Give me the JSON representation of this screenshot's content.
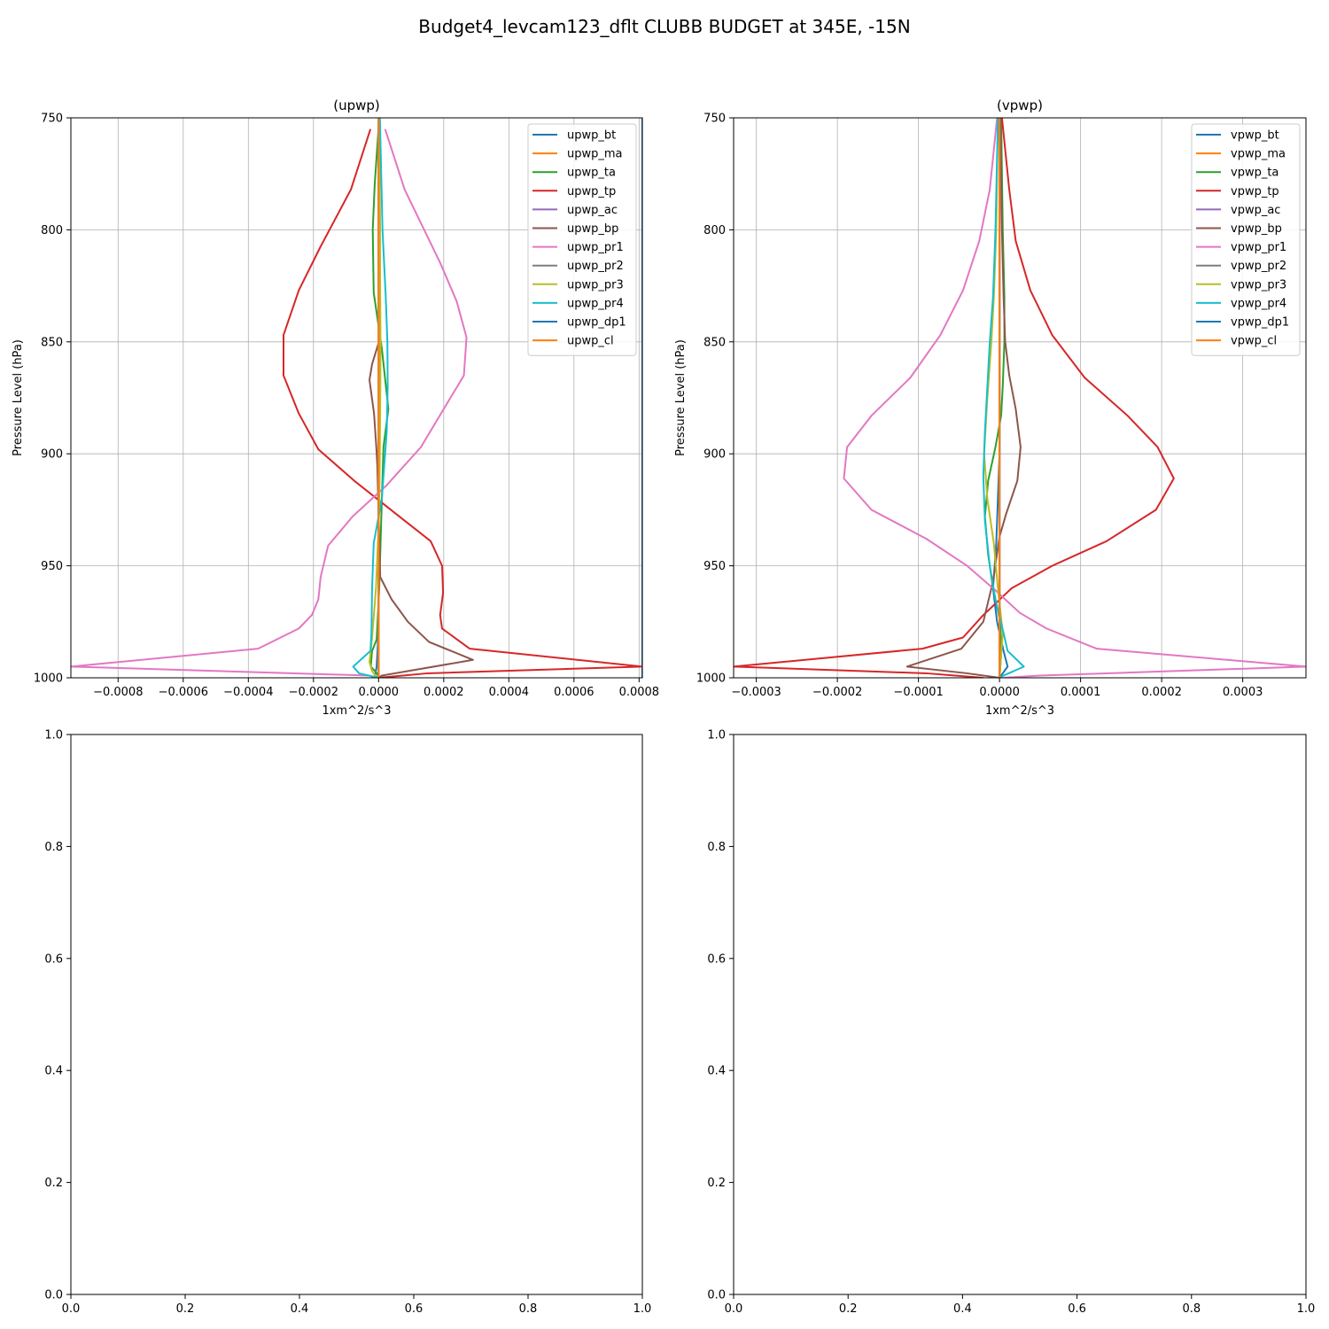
{
  "figure": {
    "suptitle": "Budget4_levcam123_dflt CLUBB BUDGET at 345E, -15N"
  },
  "chart_data": [
    {
      "type": "line",
      "title": "(upwp)",
      "xlabel": "1xm^2/s^3",
      "ylabel": "Pressure Level (hPa)",
      "xlim": [
        -0.000945,
        0.00081
      ],
      "ylim": [
        1000,
        750
      ],
      "y_inverted": true,
      "grid": true,
      "legend_position": "top-right",
      "xticks": [
        {
          "value": -0.0008,
          "label": "−0.0008"
        },
        {
          "value": -0.0006,
          "label": "−0.0006"
        },
        {
          "value": -0.0004,
          "label": "−0.0004"
        },
        {
          "value": -0.0002,
          "label": "−0.0002"
        },
        {
          "value": 0.0,
          "label": "0.0000"
        },
        {
          "value": 0.0002,
          "label": "0.0002"
        },
        {
          "value": 0.0004,
          "label": "0.0004"
        },
        {
          "value": 0.0006,
          "label": "0.0006"
        },
        {
          "value": 0.0008,
          "label": "0.0008"
        }
      ],
      "yticks": [
        {
          "value": 750,
          "label": "750"
        },
        {
          "value": 800,
          "label": "800"
        },
        {
          "value": 850,
          "label": "850"
        },
        {
          "value": 900,
          "label": "900"
        },
        {
          "value": 950,
          "label": "950"
        },
        {
          "value": 1000,
          "label": "1000"
        }
      ],
      "series": [
        {
          "name": "upwp_bt",
          "color": "#1f77b4",
          "x": [
            0,
            1e-06,
            2e-06,
            2e-06,
            1e-06,
            0,
            0,
            0,
            0,
            -3e-06,
            -6e-06,
            -1.2e-05,
            0
          ],
          "y": [
            750,
            800,
            850,
            880,
            900,
            920,
            940,
            960,
            975,
            987,
            995,
            1000,
            1000
          ]
        },
        {
          "name": "upwp_ma",
          "color": "#ff7f0e",
          "x": [
            0,
            0,
            0,
            0,
            0,
            0,
            0,
            0,
            0,
            0,
            0,
            0
          ],
          "y": [
            750,
            780,
            800,
            830,
            850,
            880,
            900,
            930,
            950,
            980,
            995,
            1000
          ]
        },
        {
          "name": "upwp_ta",
          "color": "#2ca02c",
          "x": [
            2e-06,
            -1.2e-05,
            -1.8e-05,
            -1.5e-05,
            1e-05,
            3e-05,
            1.5e-05,
            8e-06,
            2e-06,
            -6e-06,
            -2e-05,
            -2.4e-05,
            -5e-06,
            0
          ],
          "y": [
            750,
            780,
            800,
            828,
            853,
            880,
            897,
            930,
            960,
            983,
            988,
            995,
            998,
            1000
          ]
        },
        {
          "name": "upwp_tp",
          "color": "#d62728",
          "x": [
            -2.5e-05,
            -8.5e-05,
            -0.00018,
            -0.000245,
            -0.000292,
            -0.000292,
            -0.000245,
            -0.000185,
            -7.5e-05,
            5.5e-05,
            0.00016,
            0.000195,
            0.000198,
            0.000189,
            0.000195,
            0.00028,
            0.00081,
            0.00015,
            0
          ],
          "y": [
            755,
            782,
            808,
            827,
            847,
            865,
            882,
            898,
            912,
            927,
            939,
            950,
            962,
            972,
            978,
            987,
            995,
            998,
            1000
          ]
        },
        {
          "name": "upwp_ac",
          "color": "#9467bd",
          "x": [
            0,
            0,
            0,
            0,
            0,
            0,
            0,
            0,
            0,
            0
          ],
          "y": [
            750,
            800,
            830,
            850,
            900,
            950,
            975,
            990,
            995,
            1000
          ]
        },
        {
          "name": "upwp_bp",
          "color": "#8c564b",
          "x": [
            2e-06,
            4e-06,
            3e-06,
            1e-06,
            -2e-05,
            -2.8e-05,
            -1.4e-05,
            -7e-06,
            -4e-06,
            5e-06,
            4e-05,
            9e-05,
            0.000155,
            0.00029,
            1e-05,
            0
          ],
          "y": [
            750,
            800,
            830,
            850,
            860,
            867,
            882,
            897,
            905,
            955,
            965,
            975,
            984,
            992,
            999,
            1000
          ]
        },
        {
          "name": "upwp_pr1",
          "color": "#e377c2",
          "x": [
            2e-05,
            8e-05,
            0.00019,
            0.00024,
            0.00027,
            0.000262,
            0.0002,
            0.00013,
            2.5e-05,
            -8e-05,
            -0.000155,
            -0.000178,
            -0.000185,
            -0.000205,
            -0.000245,
            -0.00037,
            -0.000945,
            -3e-05,
            -5e-06
          ],
          "y": [
            755,
            782,
            815,
            832,
            848,
            865,
            880,
            897,
            914,
            928,
            941,
            955,
            965,
            972,
            978,
            987,
            995,
            999,
            1000
          ]
        },
        {
          "name": "upwp_pr2",
          "color": "#7f7f7f",
          "x": [
            0,
            0,
            0,
            0,
            0,
            0,
            0,
            0,
            0,
            0
          ],
          "y": [
            750,
            800,
            830,
            850,
            900,
            950,
            975,
            990,
            995,
            1000
          ]
        },
        {
          "name": "upwp_pr3",
          "color": "#bcbd22",
          "x": [
            2e-06,
            4e-06,
            5e-06,
            6e-06,
            5e-06,
            2e-06,
            -8e-06,
            -2e-05,
            -2.8e-05,
            -2e-05,
            -5e-06
          ],
          "y": [
            750,
            800,
            830,
            850,
            880,
            925,
            960,
            982,
            993,
            997,
            1000
          ]
        },
        {
          "name": "upwp_pr4",
          "color": "#17becf",
          "x": [
            4e-06,
            1.2e-05,
            2.2e-05,
            2.7e-05,
            2.8e-05,
            2.5e-05,
            1e-05,
            -1.5e-05,
            -2e-05,
            -2.2e-05,
            -2.5e-05,
            -7.8e-05,
            -6e-05,
            0
          ],
          "y": [
            750,
            800,
            830,
            850,
            870,
            890,
            920,
            940,
            960,
            980,
            988,
            995,
            998,
            1000
          ]
        },
        {
          "name": "upwp_dp1",
          "color": "#1f77b4",
          "x": [
            0.00081,
            0.00081
          ],
          "y": [
            750,
            1000
          ]
        },
        {
          "name": "upwp_cl",
          "color": "#ff7f0e",
          "x": [
            0,
            0,
            0,
            0,
            0,
            0,
            0
          ],
          "y": [
            750,
            800,
            850,
            900,
            950,
            990,
            1000
          ]
        }
      ]
    },
    {
      "type": "line",
      "title": "(vpwp)",
      "xlabel": "1xm^2/s^3",
      "ylabel": "Pressure Level (hPa)",
      "xlim": [
        -0.000328,
        0.000378
      ],
      "ylim": [
        1000,
        750
      ],
      "y_inverted": true,
      "grid": true,
      "legend_position": "top-right",
      "xticks": [
        {
          "value": -0.0003,
          "label": "−0.0003"
        },
        {
          "value": -0.0002,
          "label": "−0.0002"
        },
        {
          "value": -0.0001,
          "label": "−0.0001"
        },
        {
          "value": 0.0,
          "label": "0.0000"
        },
        {
          "value": 0.0001,
          "label": "0.0001"
        },
        {
          "value": 0.0002,
          "label": "0.0002"
        },
        {
          "value": 0.0003,
          "label": "0.0003"
        }
      ],
      "yticks": [
        {
          "value": 750,
          "label": "750"
        },
        {
          "value": 800,
          "label": "800"
        },
        {
          "value": 850,
          "label": "850"
        },
        {
          "value": 900,
          "label": "900"
        },
        {
          "value": 950,
          "label": "950"
        },
        {
          "value": 1000,
          "label": "1000"
        }
      ],
      "series": [
        {
          "name": "vpwp_bt",
          "color": "#1f77b4",
          "x": [
            0,
            0,
            0,
            0,
            -2e-06,
            -4e-06,
            -8e-06,
            -3e-06,
            5e-06,
            1e-05,
            0
          ],
          "y": [
            750,
            800,
            850,
            900,
            920,
            940,
            960,
            975,
            988,
            995,
            1000
          ]
        },
        {
          "name": "vpwp_ma",
          "color": "#ff7f0e",
          "x": [
            0,
            0,
            0,
            0,
            0,
            0,
            0
          ],
          "y": [
            750,
            800,
            850,
            900,
            950,
            990,
            1000
          ]
        },
        {
          "name": "vpwp_ta",
          "color": "#2ca02c",
          "x": [
            2e-06,
            4e-06,
            6e-06,
            6e-06,
            4e-06,
            2e-06,
            -5e-06,
            -1.4e-05,
            -1.8e-05,
            -1.4e-05,
            -8e-06,
            1e-06,
            2e-06,
            0
          ],
          "y": [
            750,
            800,
            830,
            850,
            870,
            883,
            897,
            912,
            928,
            945,
            960,
            975,
            990,
            1000
          ]
        },
        {
          "name": "vpwp_tp",
          "color": "#d62728",
          "x": [
            3e-06,
            1.2e-05,
            2e-05,
            3.8e-05,
            6.5e-05,
            0.000105,
            0.000158,
            0.000195,
            0.000215,
            0.000193,
            0.000132,
            6.5e-05,
            1.5e-05,
            -2e-05,
            -4.5e-05,
            -9.5e-05,
            -0.000328,
            -9e-05,
            -2e-05
          ],
          "y": [
            750,
            782,
            805,
            827,
            847,
            866,
            883,
            897,
            911,
            925,
            939,
            950,
            960,
            972,
            982,
            987,
            995,
            998,
            1000
          ]
        },
        {
          "name": "vpwp_ac",
          "color": "#9467bd",
          "x": [
            0,
            0,
            0,
            0,
            0,
            0,
            0,
            0
          ],
          "y": [
            750,
            800,
            850,
            900,
            950,
            975,
            990,
            1000
          ]
        },
        {
          "name": "vpwp_bp",
          "color": "#8c564b",
          "x": [
            1e-06,
            3e-06,
            5e-06,
            7e-06,
            1.2e-05,
            2e-05,
            2.6e-05,
            2.2e-05,
            8e-06,
            0.0,
            -8e-06,
            -2e-05,
            -4.7e-05,
            -0.000114,
            -4e-05,
            0
          ],
          "y": [
            750,
            800,
            830,
            850,
            865,
            880,
            897,
            912,
            927,
            937,
            957,
            975,
            987,
            995,
            998,
            1000
          ]
        },
        {
          "name": "vpwp_pr1",
          "color": "#e377c2",
          "x": [
            -3e-06,
            -1.2e-05,
            -2.5e-05,
            -4.5e-05,
            -7.3e-05,
            -0.00011,
            -0.000158,
            -0.000188,
            -0.000192,
            -0.000158,
            -9e-05,
            -4e-05,
            -5e-06,
            2.5e-05,
            5.8e-05,
            0.00012,
            0.000378,
            5e-05,
            5e-06
          ],
          "y": [
            750,
            782,
            805,
            827,
            847,
            866,
            883,
            897,
            911,
            925,
            938,
            950,
            961,
            971,
            978,
            987,
            995,
            999,
            1000
          ]
        },
        {
          "name": "vpwp_pr2",
          "color": "#7f7f7f",
          "x": [
            0,
            0,
            0,
            0,
            0,
            0,
            0
          ],
          "y": [
            750,
            800,
            850,
            900,
            950,
            990,
            1000
          ]
        },
        {
          "name": "vpwp_pr3",
          "color": "#bcbd22",
          "x": [
            -2e-06,
            -4e-06,
            -7e-06,
            -1e-05,
            -1.5e-05,
            -1.9e-05,
            -1.5e-05,
            -7e-06,
            -2e-06,
            4e-06,
            0
          ],
          "y": [
            750,
            800,
            830,
            850,
            875,
            900,
            920,
            940,
            960,
            980,
            1000
          ]
        },
        {
          "name": "vpwp_pr4",
          "color": "#17becf",
          "x": [
            -2e-06,
            -5e-06,
            -8e-06,
            -1.2e-05,
            -1.5e-05,
            -1.8e-05,
            -2e-05,
            -1.8e-05,
            -1.2e-05,
            -5e-06,
            5e-06,
            1e-05,
            3e-05,
            5e-06,
            0
          ],
          "y": [
            750,
            800,
            830,
            850,
            870,
            890,
            910,
            930,
            950,
            965,
            980,
            988,
            995,
            999,
            1000
          ]
        },
        {
          "name": "vpwp_dp1",
          "color": "#1f77b4",
          "x": [
            0,
            0,
            0,
            0,
            0,
            0,
            0
          ],
          "y": [
            750,
            800,
            850,
            900,
            950,
            990,
            1000
          ]
        },
        {
          "name": "vpwp_cl",
          "color": "#ff7f0e",
          "x": [
            0,
            0,
            0,
            0,
            0,
            0,
            0
          ],
          "y": [
            750,
            800,
            850,
            900,
            950,
            990,
            1000
          ]
        }
      ]
    },
    {
      "type": "line",
      "title": "",
      "xlim": [
        0,
        1
      ],
      "ylim": [
        0,
        1
      ],
      "grid": false,
      "xticks": [
        {
          "value": 0.0,
          "label": "0.0"
        },
        {
          "value": 0.2,
          "label": "0.2"
        },
        {
          "value": 0.4,
          "label": "0.4"
        },
        {
          "value": 0.6,
          "label": "0.6"
        },
        {
          "value": 0.8,
          "label": "0.8"
        },
        {
          "value": 1.0,
          "label": "1.0"
        }
      ],
      "yticks": [
        {
          "value": 0.0,
          "label": "0.0"
        },
        {
          "value": 0.2,
          "label": "0.2"
        },
        {
          "value": 0.4,
          "label": "0.4"
        },
        {
          "value": 0.6,
          "label": "0.6"
        },
        {
          "value": 0.8,
          "label": "0.8"
        },
        {
          "value": 1.0,
          "label": "1.0"
        }
      ],
      "series": []
    },
    {
      "type": "line",
      "title": "",
      "xlim": [
        0,
        1
      ],
      "ylim": [
        0,
        1
      ],
      "grid": false,
      "xticks": [
        {
          "value": 0.0,
          "label": "0.0"
        },
        {
          "value": 0.2,
          "label": "0.2"
        },
        {
          "value": 0.4,
          "label": "0.4"
        },
        {
          "value": 0.6,
          "label": "0.6"
        },
        {
          "value": 0.8,
          "label": "0.8"
        },
        {
          "value": 1.0,
          "label": "1.0"
        }
      ],
      "yticks": [
        {
          "value": 0.0,
          "label": "0.0"
        },
        {
          "value": 0.2,
          "label": "0.2"
        },
        {
          "value": 0.4,
          "label": "0.4"
        },
        {
          "value": 0.6,
          "label": "0.6"
        },
        {
          "value": 0.8,
          "label": "0.8"
        },
        {
          "value": 1.0,
          "label": "1.0"
        }
      ],
      "series": []
    }
  ]
}
